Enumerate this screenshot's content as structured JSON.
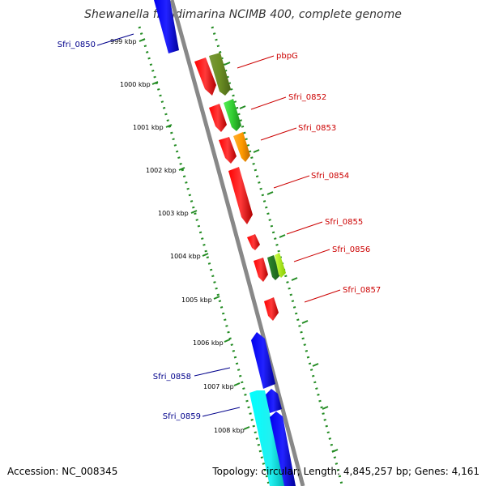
{
  "title": "Shewanella frigidimarina NCIMB 400, complete genome",
  "footer": {
    "accession": "Accession: NC_008345",
    "summary": "Topology: circular; Length: 4,845,257 bp; Genes: 4,161"
  },
  "colors": {
    "backbone": "#888888",
    "tick": "#228b22",
    "label_forward": "#00008b",
    "label_reverse": "#cc0000"
  },
  "position_ticks_kbp": [
    "999 kbp",
    "1000 kbp",
    "1001 kbp",
    "1002 kbp",
    "1003 kbp",
    "1004 kbp",
    "1005 kbp",
    "1006 kbp",
    "1007 kbp",
    "1008 kbp"
  ],
  "gene_labels": [
    {
      "id": "Sfri_0850",
      "strand": "forward"
    },
    {
      "id": "pbpG",
      "strand": "reverse"
    },
    {
      "id": "Sfri_0852",
      "strand": "reverse"
    },
    {
      "id": "Sfri_0853",
      "strand": "reverse"
    },
    {
      "id": "Sfri_0854",
      "strand": "reverse"
    },
    {
      "id": "Sfri_0855",
      "strand": "reverse"
    },
    {
      "id": "Sfri_0856",
      "strand": "reverse"
    },
    {
      "id": "Sfri_0857",
      "strand": "reverse"
    },
    {
      "id": "Sfri_0858",
      "strand": "forward"
    },
    {
      "id": "Sfri_0859",
      "strand": "forward"
    }
  ]
}
